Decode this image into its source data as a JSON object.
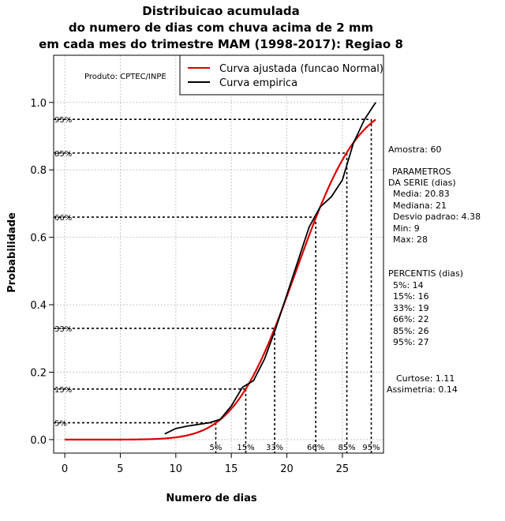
{
  "title_lines": [
    "Distribuicao acumulada",
    "do numero de dias com chuva acima de 2 mm",
    "em cada mes do trimestre MAM (1998-2017): Regiao 8"
  ],
  "product_label": "Produto: CPTEC/INPE",
  "side_panel": {
    "sample": "Amostra: 60",
    "params_title_1": "PARAMETROS",
    "params_title_2": "DA SERIE (dias)",
    "params": [
      "Media: 20.83",
      "Mediana: 21",
      "Desvio padrao: 4.38",
      "Min: 9",
      "Max: 28"
    ],
    "percentiles_title": "PERCENTIS (dias)",
    "percentiles": [
      "5%: 14",
      "15%: 16",
      "33%: 19",
      "66%: 22",
      "85%: 26",
      "95%: 27"
    ],
    "kurtosis": "Curtose: 1.11",
    "skewness": "Assimetria: 0.14"
  },
  "chart_data": {
    "type": "line",
    "title": "Distribuicao acumulada do numero de dias com chuva acima de 2 mm em cada mes do trimestre MAM (1998-2017): Regiao 8",
    "xlabel": "Numero de dias",
    "ylabel": "Probabilidade",
    "xlim": [
      -1,
      28.7
    ],
    "ylim": [
      -0.04,
      1.14
    ],
    "x_ticks": [
      0,
      5,
      10,
      15,
      20,
      25
    ],
    "y_ticks": [
      0.0,
      0.2,
      0.4,
      0.6,
      0.8,
      1.0
    ],
    "x_tick_labels": [
      "0",
      "5",
      "10",
      "15",
      "20",
      "25"
    ],
    "y_tick_labels": [
      "0.0",
      "0.2",
      "0.4",
      "0.6",
      "0.8",
      "1.0"
    ],
    "grid": true,
    "legend_position": "top-right",
    "series": [
      {
        "name": "Curva ajustada (funcao Normal)",
        "color": "#dd0000",
        "mean": 20.83,
        "sd": 4.38,
        "x_range": [
          0,
          28
        ]
      },
      {
        "name": "Curva empirica",
        "color": "#000000",
        "x": [
          9,
          10,
          11,
          12,
          13,
          14,
          15,
          16,
          17,
          18,
          19,
          20,
          21,
          22,
          23,
          24,
          25,
          26,
          27,
          28
        ],
        "values": [
          0.017,
          0.033,
          0.04,
          0.045,
          0.05,
          0.06,
          0.1,
          0.155,
          0.175,
          0.24,
          0.33,
          0.43,
          0.53,
          0.63,
          0.69,
          0.72,
          0.77,
          0.88,
          0.95,
          1.0
        ]
      }
    ],
    "percentile_markers": [
      {
        "label": "5%",
        "p": 0.05,
        "x": 13.6
      },
      {
        "label": "15%",
        "p": 0.15,
        "x": 16.3
      },
      {
        "label": "33%",
        "p": 0.33,
        "x": 18.9
      },
      {
        "label": "66%",
        "p": 0.66,
        "x": 22.6
      },
      {
        "label": "85%",
        "p": 0.85,
        "x": 25.4
      },
      {
        "label": "95%",
        "p": 0.95,
        "x": 27.6
      }
    ]
  }
}
